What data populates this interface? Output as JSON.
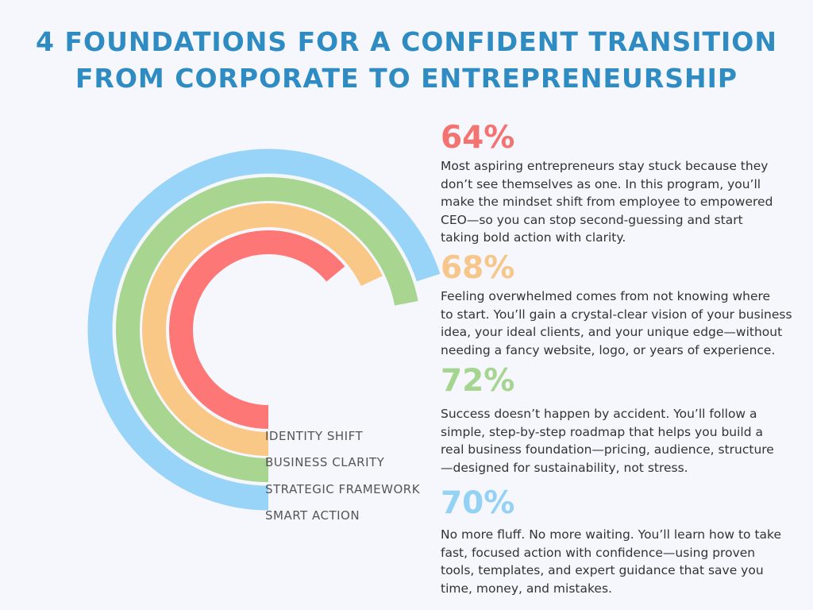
{
  "title": {
    "line1": "4 FOUNDATIONS FOR A CONFIDENT TRANSITION",
    "line2": "FROM CORPORATE TO ENTREPRENEURSHIP"
  },
  "chart_data": {
    "type": "radial-bar",
    "categories": [
      "IDENTITY SHIFT",
      "BUSINESS CLARITY",
      "STRATEGIC FRAMEWORK",
      "SMART ACTION"
    ],
    "values": [
      64,
      68,
      72,
      70
    ],
    "unit": "%",
    "colors": [
      "#fc7775",
      "#f9c886",
      "#a8d590",
      "#97d4f8"
    ]
  },
  "stats": [
    {
      "percent": "64%",
      "color": "#f37370",
      "lines": [
        "Most aspiring entrepreneurs stay stuck because they",
        "don’t see themselves as one. In this program, you’ll",
        "make the mindset shift from employee to empowered",
        "CEO—so you can stop second-guessing and start",
        "taking bold action with clarity."
      ]
    },
    {
      "percent": "68%",
      "color": "#f6c68a",
      "lines": [
        "Feeling overwhelmed comes from not knowing where",
        "to start. You’ll gain a crystal-clear vision of your business",
        "idea, your ideal clients, and your unique edge—without",
        "needing a fancy website, logo, or years of experience."
      ]
    },
    {
      "percent": "72%",
      "color": "#a6d591",
      "lines": [
        "Success doesn’t happen by accident. You’ll follow a",
        "simple, step-by-step roadmap that helps you build a",
        "real business foundation—pricing, audience, structure",
        "—designed for sustainability, not stress."
      ]
    },
    {
      "percent": "70%",
      "color": "#94d2f5",
      "lines": [
        "No more fluff. No more waiting. You’ll learn how to take",
        "fast, focused action with confidence—using proven",
        "tools, templates, and expert guidance that save you",
        "time, money, and mistakes."
      ]
    }
  ]
}
